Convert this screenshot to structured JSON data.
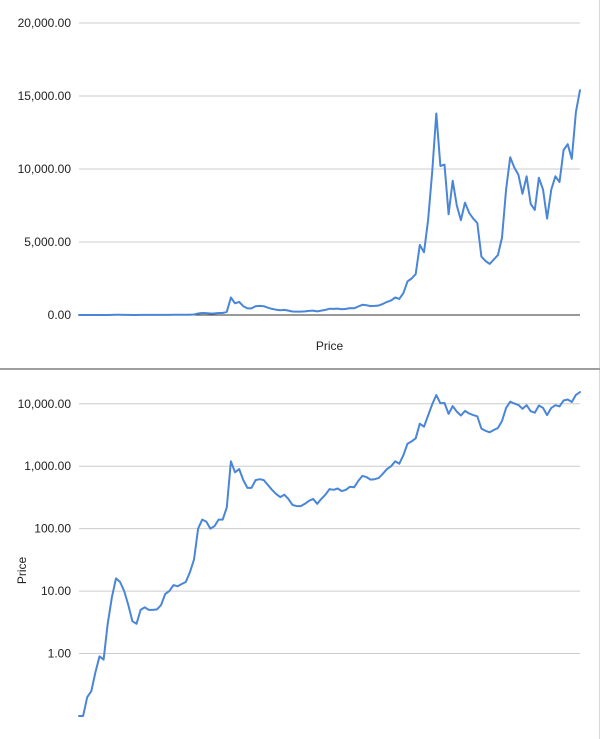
{
  "chart_data": [
    {
      "type": "line",
      "scale": "linear",
      "xlabel": "Price",
      "ylabel": "",
      "ylim": [
        0,
        20000
      ],
      "yticks": [
        0,
        5000,
        10000,
        15000,
        20000
      ],
      "ytick_labels": [
        "0.00",
        "5,000.00",
        "10,000.00",
        "15,000.00",
        "20,000.00"
      ],
      "grid": true,
      "legend": "none",
      "color": "#4a86d8",
      "series": [
        {
          "values": [
            0.06,
            0.08,
            0.2,
            0.25,
            0.5,
            0.9,
            0.8,
            3,
            8,
            16,
            14,
            10,
            6,
            3.3,
            3,
            5,
            5.5,
            5,
            5,
            5.1,
            6,
            9,
            10,
            12.5,
            12,
            13,
            14,
            20,
            32,
            100,
            140,
            130,
            100,
            110,
            140,
            140,
            220,
            1200,
            800,
            900,
            600,
            450,
            450,
            600,
            620,
            600,
            500,
            420,
            360,
            320,
            350,
            300,
            240,
            230,
            230,
            250,
            280,
            300,
            250,
            300,
            350,
            430,
            420,
            440,
            400,
            420,
            470,
            460,
            580,
            700,
            670,
            610,
            620,
            650,
            760,
            900,
            1000,
            1200,
            1100,
            1500,
            2300,
            2500,
            2800,
            4800,
            4300,
            6500,
            9800,
            13800,
            10200,
            10300,
            6900,
            9200,
            7500,
            6500,
            7700,
            7000,
            6600,
            6300,
            4000,
            3700,
            3500,
            3800,
            4100,
            5300,
            8600,
            10800,
            10100,
            9600,
            8300,
            9500,
            7600,
            7200,
            9400,
            8600,
            6600,
            8600,
            9500,
            9100,
            11300,
            11700,
            10700,
            13900,
            15400
          ]
        }
      ]
    },
    {
      "type": "line",
      "scale": "log",
      "xlabel": "",
      "ylabel": "Price",
      "ylim": [
        0.1,
        20000
      ],
      "yticks": [
        1,
        10,
        100,
        1000,
        10000
      ],
      "ytick_labels": [
        "1.00",
        "10.00",
        "100.00",
        "1,000.00",
        "10,000.00"
      ],
      "grid": true,
      "legend": "none",
      "color": "#4a86d8",
      "series": [
        {
          "values": [
            0.06,
            0.08,
            0.2,
            0.25,
            0.5,
            0.9,
            0.8,
            3,
            8,
            16,
            14,
            10,
            6,
            3.3,
            3,
            5,
            5.5,
            5,
            5,
            5.1,
            6,
            9,
            10,
            12.5,
            12,
            13,
            14,
            20,
            32,
            100,
            140,
            130,
            100,
            110,
            140,
            140,
            220,
            1200,
            800,
            900,
            600,
            450,
            450,
            600,
            620,
            600,
            500,
            420,
            360,
            320,
            350,
            300,
            240,
            230,
            230,
            250,
            280,
            300,
            250,
            300,
            350,
            430,
            420,
            440,
            400,
            420,
            470,
            460,
            580,
            700,
            670,
            610,
            620,
            650,
            760,
            900,
            1000,
            1200,
            1100,
            1500,
            2300,
            2500,
            2800,
            4800,
            4300,
            6500,
            9800,
            13800,
            10200,
            10300,
            6900,
            9200,
            7500,
            6500,
            7700,
            7000,
            6600,
            6300,
            4000,
            3700,
            3500,
            3800,
            4100,
            5300,
            8600,
            10800,
            10100,
            9600,
            8300,
            9500,
            7600,
            7200,
            9400,
            8600,
            6600,
            8600,
            9500,
            9100,
            11300,
            11700,
            10700,
            13900,
            15400
          ]
        }
      ]
    }
  ]
}
